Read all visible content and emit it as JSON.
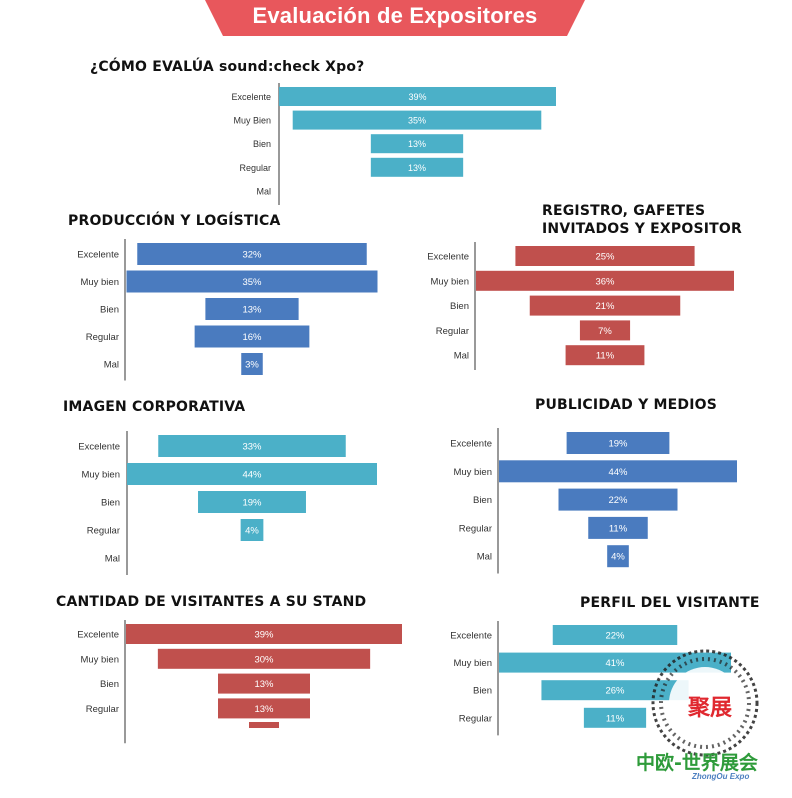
{
  "header": {
    "title": "Evaluación de Expositores",
    "color": "#e8575c"
  },
  "watermark": {
    "stamp": "聚展",
    "brand": "中欧-世界展会",
    "sub": "ZhongOu Expo",
    "stamp_color": "#e0282f",
    "brand_color": "#2e9b3a"
  },
  "chart_data": [
    {
      "type": "bar",
      "title": "¿CÓMO EVALÚA sound:check Xpo?",
      "color": "#4bb0c8",
      "categories": [
        "Excelente",
        "Muy Bien",
        "Bien",
        "Regular",
        "Mal"
      ],
      "values": [
        39,
        35,
        13,
        13,
        0
      ],
      "labels": [
        "39%",
        "35%",
        "13%",
        "13%",
        ""
      ]
    },
    {
      "type": "bar",
      "title": "PRODUCCIÓN Y LOGÍSTICA",
      "color": "#4a7bbf",
      "categories": [
        "Excelente",
        "Muy bien",
        "Bien",
        "Regular",
        "Mal"
      ],
      "values": [
        32,
        35,
        13,
        16,
        3
      ],
      "labels": [
        "32%",
        "35%",
        "13%",
        "16%",
        "3%"
      ]
    },
    {
      "type": "bar",
      "title": "REGISTRO, GAFETES INVITADOS Y EXPOSITOR",
      "title_lines": [
        "REGISTRO, GAFETES",
        "INVITADOS Y EXPOSITOR"
      ],
      "color": "#c0504d",
      "categories": [
        "Excelente",
        "Muy bien",
        "Bien",
        "Regular",
        "Mal"
      ],
      "values": [
        25,
        36,
        21,
        7,
        11
      ],
      "labels": [
        "25%",
        "36%",
        "21%",
        "7%",
        "11%"
      ]
    },
    {
      "type": "bar",
      "title": "IMAGEN CORPORATIVA",
      "color": "#4bb0c8",
      "categories": [
        "Excelente",
        "Muy bien",
        "Bien",
        "Regular",
        "Mal"
      ],
      "values": [
        33,
        44,
        19,
        4,
        0
      ],
      "labels": [
        "33%",
        "44%",
        "19%",
        "4%",
        ""
      ]
    },
    {
      "type": "bar",
      "title": "PUBLICIDAD Y MEDIOS",
      "color": "#4a7bbf",
      "categories": [
        "Excelente",
        "Muy bien",
        "Bien",
        "Regular",
        "Mal"
      ],
      "values": [
        19,
        44,
        22,
        11,
        4
      ],
      "labels": [
        "19%",
        "44%",
        "22%",
        "11%",
        "4%"
      ]
    },
    {
      "type": "bar",
      "title": "CANTIDAD DE VISITANTES A SU STAND",
      "color": "#c0504d",
      "categories": [
        "Excelente",
        "Muy bien",
        "Bien",
        "Regular"
      ],
      "values": [
        39,
        30,
        13,
        13
      ],
      "labels": [
        "39%",
        "30%",
        "13%",
        "13%"
      ],
      "note": "a fifth bar is cut off at the bottom edge"
    },
    {
      "type": "bar",
      "title": "PERFIL DEL VISITANTE",
      "color": "#4bb0c8",
      "categories": [
        "Excelente",
        "Muy bien",
        "Bien",
        "Regular"
      ],
      "values": [
        22,
        41,
        26,
        11
      ],
      "labels": [
        "22%",
        "41%",
        "26%",
        "11%"
      ]
    }
  ]
}
